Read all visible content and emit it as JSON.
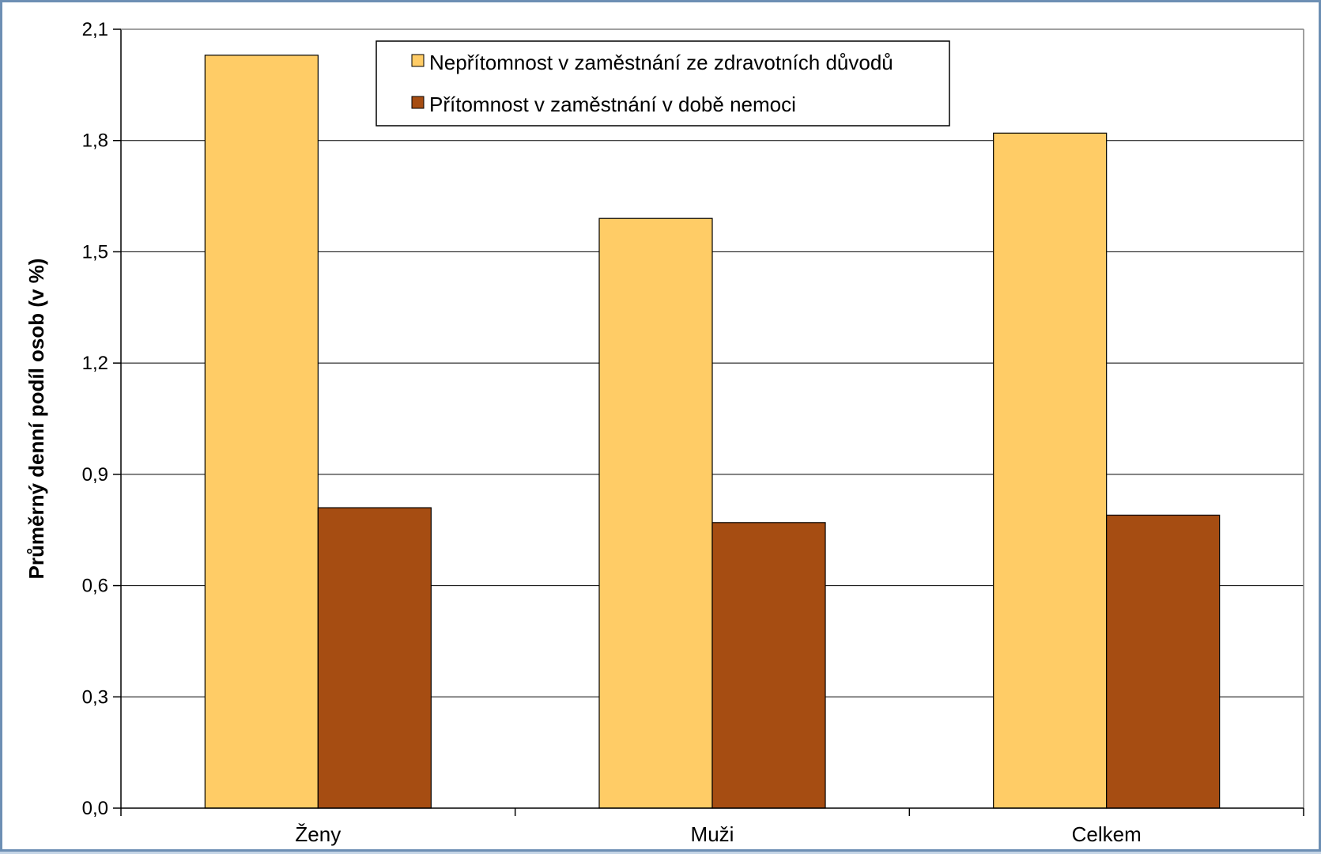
{
  "chart_data": {
    "type": "bar",
    "title": "",
    "xlabel": "",
    "ylabel": "Průměrný denní podíl osob (v %)",
    "categories": [
      "Ženy",
      "Muži",
      "Celkem"
    ],
    "series": [
      {
        "name": "Nepřítomnost v zaměstnání ze zdravotních důvodů",
        "values": [
          2.03,
          1.59,
          1.82
        ],
        "color": "#ffcc66"
      },
      {
        "name": "Přítomnost v zaměstnání v době nemoci",
        "values": [
          0.81,
          0.77,
          0.79
        ],
        "color": "#a64d12"
      }
    ],
    "ylim": [
      0,
      2.1
    ],
    "yticks": [
      "0,0",
      "0,3",
      "0,6",
      "0,9",
      "1,2",
      "1,5",
      "1,8",
      "2,1"
    ],
    "ytick_values": [
      0,
      0.3,
      0.6,
      0.9,
      1.2,
      1.5,
      1.8,
      2.1
    ],
    "grid": true,
    "legend_position": "top-center"
  }
}
